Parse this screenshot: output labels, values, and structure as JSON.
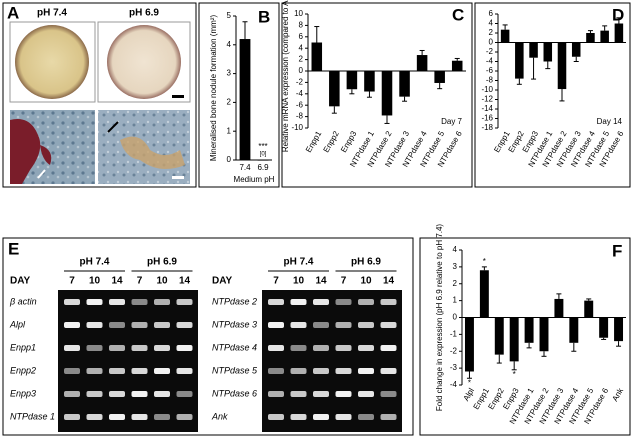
{
  "panel_a": {
    "label": "A",
    "conditions": [
      "pH 7.4",
      "pH 6.9"
    ]
  },
  "panel_e": {
    "label": "E",
    "groups": [
      "pH 7.4",
      "pH 6.9"
    ],
    "day_label": "DAY",
    "days": [
      "7",
      "10",
      "14"
    ],
    "left_rows": [
      "β actin",
      "Alpl",
      "Enpp1",
      "Enpp2",
      "Enpp3",
      "NTPdase 1"
    ],
    "right_rows": [
      "NTPdase 2",
      "NTPdase 3",
      "NTPdase 4",
      "NTPdase 5",
      "NTPdase 6",
      "Ank"
    ]
  },
  "chart_data": [
    {
      "type": "bar",
      "panel_label": "B",
      "y_label": "Mineralised bone nodule formation (mm²)",
      "x_label": "Medium pH",
      "categories": [
        "7.4",
        "6.9"
      ],
      "values": [
        4.2,
        0
      ],
      "value_labels": [
        null,
        "[0]"
      ],
      "errors": [
        0.6,
        0
      ],
      "significance": [
        null,
        "***"
      ],
      "color": "#000000",
      "ylim": [
        0,
        5
      ],
      "yticks": [
        0,
        1,
        2,
        3,
        4,
        5
      ]
    },
    {
      "type": "bar",
      "panel_label": "C",
      "y_label": "Relative mRNA expression (compared to Alpl)",
      "note": "Day 7",
      "categories": [
        "Enpp1",
        "Enpp2",
        "Enpp3",
        "NTPdase 1",
        "NTPdase 2",
        "NTPdase 3",
        "NTPdase 4",
        "NTPdase 5",
        "NTPdase 6"
      ],
      "values": [
        5,
        -6.2,
        -3.2,
        -3.6,
        -7.8,
        -4.5,
        2.8,
        -2.1,
        1.8
      ],
      "errors": [
        2.8,
        1.2,
        0.8,
        1.0,
        1.4,
        0.8,
        0.8,
        1.0,
        0.4
      ],
      "color": "#000000",
      "ylim": [
        -10,
        10
      ],
      "yticks": [
        -10,
        -8,
        -6,
        -4,
        -2,
        0,
        2,
        4,
        6,
        8,
        10
      ]
    },
    {
      "type": "bar",
      "panel_label": "D",
      "note": "Day 14",
      "categories": [
        "Enpp1",
        "Enpp2",
        "Enpp3",
        "NTPdase 1",
        "NTPdase 2",
        "NTPdase 3",
        "NTPdase 4",
        "NTPdase 5",
        "NTPdase 6"
      ],
      "values": [
        2.7,
        -7.6,
        -3.2,
        -4.0,
        -9.8,
        -3.0,
        2.0,
        2.5,
        4.0
      ],
      "errors": [
        1.0,
        1.2,
        4.5,
        1.5,
        2.5,
        1.0,
        0.5,
        1.0,
        1.2
      ],
      "color": "#000000",
      "ylim": [
        -18,
        6
      ],
      "yticks": [
        -18,
        -16,
        -14,
        -12,
        -10,
        -8,
        -6,
        -4,
        -2,
        0,
        2,
        4,
        6
      ]
    },
    {
      "type": "bar",
      "panel_label": "F",
      "y_label": "Fold change in expression (pH 6.9 relative to pH 7.4)",
      "categories": [
        "Alpl",
        "Enpp1",
        "Enpp2",
        "Enpp3",
        "NTPdase 1",
        "NTPdase 2",
        "NTPdase 3",
        "NTPdase 4",
        "NTPdase 5",
        "NTPdase 6",
        "Ank"
      ],
      "values": [
        -3.2,
        2.8,
        -2.2,
        -2.6,
        -1.5,
        -2.0,
        1.1,
        -1.5,
        1.0,
        -1.2,
        -1.4
      ],
      "errors": [
        0.4,
        0.2,
        0.5,
        0.5,
        0.3,
        0.3,
        0.3,
        0.5,
        0.1,
        0.1,
        0.3
      ],
      "significance": [
        "*",
        "*",
        null,
        "*",
        null,
        null,
        null,
        null,
        null,
        null,
        null
      ],
      "color": "#000000",
      "ylim": [
        -4,
        4
      ],
      "yticks": [
        -4,
        -3,
        -2,
        -1,
        0,
        1,
        2,
        3,
        4
      ]
    }
  ]
}
